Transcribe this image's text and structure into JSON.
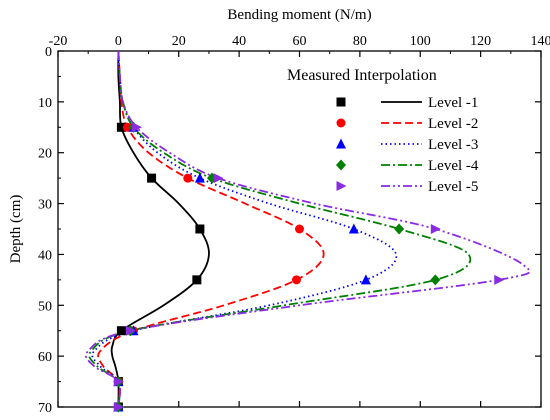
{
  "chart_data": {
    "type": "line",
    "xlabel": "Bending moment (N/m)",
    "ylabel": "Depth (cm)",
    "xlim": [
      -20,
      140
    ],
    "ylim": [
      0,
      70
    ],
    "y_inverted": true,
    "x_axis_position": "top",
    "xticks": [
      -20,
      0,
      20,
      40,
      60,
      80,
      100,
      120,
      140
    ],
    "yticks": [
      0,
      10,
      20,
      30,
      40,
      50,
      60,
      70
    ],
    "grid": false,
    "legend_placement": "top-right",
    "legend_headers": {
      "measured": "Measured",
      "interpolation": "Interpolation"
    },
    "series": [
      {
        "name": "Level -1",
        "color": "#000000",
        "marker": "square",
        "dash": "solid",
        "measured": [
          [
            1,
            15
          ],
          [
            11,
            25
          ],
          [
            27,
            35
          ],
          [
            26,
            45
          ],
          [
            1,
            55
          ],
          [
            0,
            65
          ],
          [
            0,
            70
          ]
        ],
        "curve": [
          [
            0,
            0
          ],
          [
            0,
            5
          ],
          [
            0.5,
            10
          ],
          [
            1,
            15
          ],
          [
            5,
            20
          ],
          [
            11,
            25
          ],
          [
            20,
            30
          ],
          [
            27,
            35
          ],
          [
            30,
            40
          ],
          [
            26,
            45
          ],
          [
            15,
            50
          ],
          [
            1,
            55
          ],
          [
            -2,
            58
          ],
          [
            -2,
            60
          ],
          [
            -1,
            62
          ],
          [
            0,
            65
          ],
          [
            0,
            70
          ]
        ]
      },
      {
        "name": "Level -2",
        "color": "#ff0000",
        "marker": "circle",
        "dash": "dashed",
        "measured": [
          [
            3,
            15
          ],
          [
            23,
            25
          ],
          [
            60,
            35
          ],
          [
            59,
            45
          ],
          [
            5,
            55
          ],
          [
            0,
            65
          ]
        ],
        "curve": [
          [
            0,
            0
          ],
          [
            0.5,
            5
          ],
          [
            1,
            10
          ],
          [
            3,
            15
          ],
          [
            10,
            20
          ],
          [
            23,
            25
          ],
          [
            42,
            30
          ],
          [
            60,
            35
          ],
          [
            68,
            40
          ],
          [
            59,
            45
          ],
          [
            35,
            50
          ],
          [
            5,
            55
          ],
          [
            -6,
            59
          ],
          [
            -5,
            62
          ],
          [
            0,
            65
          ],
          [
            0,
            70
          ]
        ]
      },
      {
        "name": "Level -3",
        "color": "#0000ff",
        "marker": "triangle-up",
        "dash": "dotted",
        "measured": [
          [
            5,
            15
          ],
          [
            27,
            25
          ],
          [
            78,
            35
          ],
          [
            82,
            45
          ],
          [
            5,
            55
          ],
          [
            0,
            65
          ],
          [
            0,
            70
          ]
        ],
        "curve": [
          [
            0,
            0
          ],
          [
            0.5,
            5
          ],
          [
            1.5,
            10
          ],
          [
            5,
            15
          ],
          [
            13,
            20
          ],
          [
            27,
            25
          ],
          [
            50,
            30
          ],
          [
            78,
            35
          ],
          [
            92,
            40
          ],
          [
            82,
            45
          ],
          [
            50,
            50
          ],
          [
            5,
            55
          ],
          [
            -8,
            59
          ],
          [
            -6,
            62
          ],
          [
            0,
            65
          ],
          [
            0,
            70
          ]
        ]
      },
      {
        "name": "Level -4",
        "color": "#008000",
        "marker": "diamond",
        "dash": "dashdot",
        "measured": [
          [
            5,
            15
          ],
          [
            31,
            25
          ],
          [
            93,
            35
          ],
          [
            105,
            45
          ],
          [
            4,
            55
          ],
          [
            0,
            65
          ],
          [
            0,
            70
          ]
        ],
        "curve": [
          [
            0,
            0
          ],
          [
            0.5,
            5
          ],
          [
            1.5,
            10
          ],
          [
            5,
            15
          ],
          [
            15,
            20
          ],
          [
            31,
            25
          ],
          [
            60,
            30
          ],
          [
            93,
            35
          ],
          [
            116,
            40
          ],
          [
            105,
            45
          ],
          [
            55,
            50
          ],
          [
            4,
            55
          ],
          [
            -9,
            59
          ],
          [
            -7,
            62
          ],
          [
            0,
            65
          ],
          [
            0,
            70
          ]
        ]
      },
      {
        "name": "Level -5",
        "color": "#8a2be2",
        "marker": "triangle-right",
        "dash": "dashdotdot",
        "measured": [
          [
            6,
            15
          ],
          [
            33,
            25
          ],
          [
            105,
            35
          ],
          [
            126,
            45
          ],
          [
            4,
            55
          ],
          [
            0,
            65
          ],
          [
            0,
            70
          ]
        ],
        "curve": [
          [
            0,
            0
          ],
          [
            0.5,
            5
          ],
          [
            1.5,
            10
          ],
          [
            6,
            15
          ],
          [
            17,
            20
          ],
          [
            33,
            25
          ],
          [
            65,
            30
          ],
          [
            105,
            35
          ],
          [
            134,
            42
          ],
          [
            126,
            45
          ],
          [
            60,
            50
          ],
          [
            4,
            55
          ],
          [
            -10,
            59
          ],
          [
            -8,
            62
          ],
          [
            0,
            65
          ],
          [
            0,
            70
          ]
        ]
      }
    ]
  }
}
